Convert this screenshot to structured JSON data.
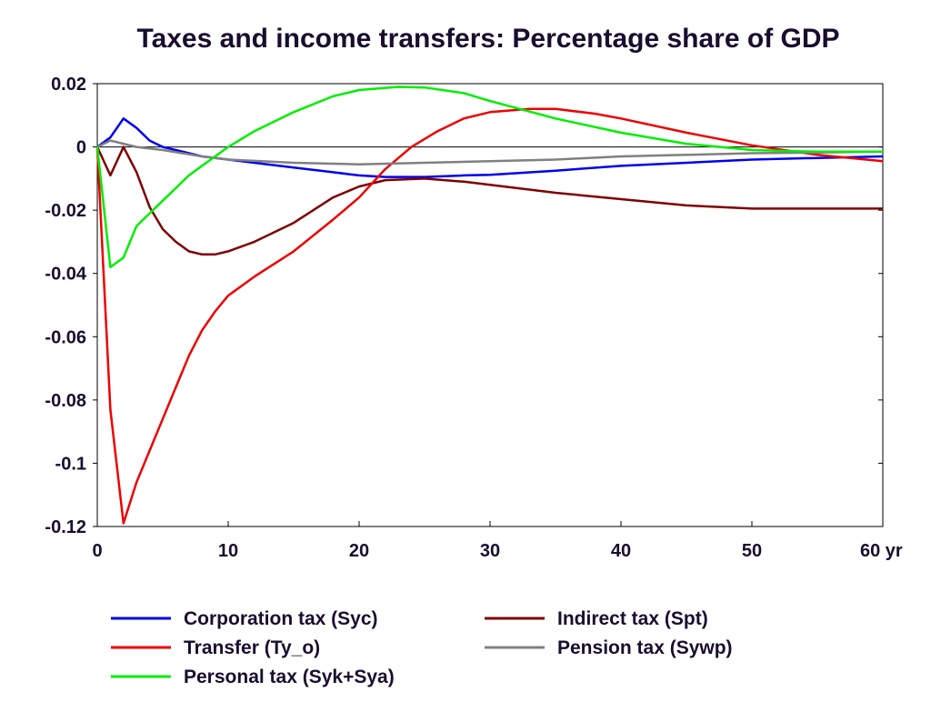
{
  "chart_data": {
    "type": "line",
    "title": "Taxes and income transfers: Percentage share of GDP",
    "xlabel": "",
    "ylabel": "",
    "xlim": [
      0,
      60
    ],
    "ylim": [
      -0.12,
      0.02
    ],
    "x_ticks": [
      0,
      10,
      20,
      30,
      40,
      50,
      60
    ],
    "x_tick_labels": [
      "0",
      "10",
      "20",
      "30",
      "40",
      "50",
      "60 yr"
    ],
    "y_ticks": [
      0.02,
      0,
      -0.02,
      -0.04,
      -0.06,
      -0.08,
      -0.1,
      -0.12
    ],
    "y_tick_labels": [
      "0.02",
      "0",
      "-0.02",
      "-0.04",
      "-0.06",
      "-0.08",
      "-0.1",
      "-0.12"
    ],
    "zero_line": true,
    "grid": false,
    "legend_position": "bottom",
    "series": [
      {
        "name": "Corporation tax (Syc)",
        "color": "#0000ee",
        "points": [
          [
            0,
            0
          ],
          [
            1,
            0.003
          ],
          [
            2,
            0.009
          ],
          [
            3,
            0.006
          ],
          [
            4,
            0.002
          ],
          [
            5,
            0
          ],
          [
            6,
            -0.001
          ],
          [
            8,
            -0.003
          ],
          [
            10,
            -0.004
          ],
          [
            12,
            -0.005
          ],
          [
            15,
            -0.0065
          ],
          [
            18,
            -0.008
          ],
          [
            20,
            -0.009
          ],
          [
            22,
            -0.0095
          ],
          [
            25,
            -0.0095
          ],
          [
            28,
            -0.009
          ],
          [
            30,
            -0.0088
          ],
          [
            35,
            -0.0075
          ],
          [
            40,
            -0.006
          ],
          [
            45,
            -0.005
          ],
          [
            50,
            -0.004
          ],
          [
            55,
            -0.0035
          ],
          [
            60,
            -0.003
          ]
        ]
      },
      {
        "name": "Indirect tax (Spt)",
        "color": "#800000",
        "points": [
          [
            0,
            0
          ],
          [
            1,
            -0.009
          ],
          [
            2,
            0
          ],
          [
            3,
            -0.008
          ],
          [
            4,
            -0.019
          ],
          [
            5,
            -0.026
          ],
          [
            6,
            -0.03
          ],
          [
            7,
            -0.033
          ],
          [
            8,
            -0.034
          ],
          [
            9,
            -0.034
          ],
          [
            10,
            -0.033
          ],
          [
            12,
            -0.03
          ],
          [
            15,
            -0.024
          ],
          [
            18,
            -0.016
          ],
          [
            20,
            -0.0125
          ],
          [
            22,
            -0.0105
          ],
          [
            25,
            -0.01
          ],
          [
            28,
            -0.011
          ],
          [
            30,
            -0.012
          ],
          [
            35,
            -0.0145
          ],
          [
            40,
            -0.0165
          ],
          [
            45,
            -0.0185
          ],
          [
            50,
            -0.0195
          ],
          [
            55,
            -0.0195
          ],
          [
            60,
            -0.0195
          ]
        ]
      },
      {
        "name": "Transfer (Ty_o)",
        "color": "#ee0000",
        "points": [
          [
            0,
            0
          ],
          [
            1,
            -0.083
          ],
          [
            2,
            -0.119
          ],
          [
            3,
            -0.106
          ],
          [
            4,
            -0.096
          ],
          [
            5,
            -0.086
          ],
          [
            6,
            -0.076
          ],
          [
            7,
            -0.066
          ],
          [
            8,
            -0.058
          ],
          [
            9,
            -0.052
          ],
          [
            10,
            -0.047
          ],
          [
            12,
            -0.041
          ],
          [
            15,
            -0.033
          ],
          [
            18,
            -0.023
          ],
          [
            20,
            -0.016
          ],
          [
            22,
            -0.007
          ],
          [
            24,
            0
          ],
          [
            26,
            0.005
          ],
          [
            28,
            0.009
          ],
          [
            30,
            0.011
          ],
          [
            33,
            0.012
          ],
          [
            35,
            0.012
          ],
          [
            38,
            0.0105
          ],
          [
            40,
            0.009
          ],
          [
            45,
            0.0045
          ],
          [
            50,
            0.0005
          ],
          [
            55,
            -0.0025
          ],
          [
            60,
            -0.0045
          ]
        ]
      },
      {
        "name": "Pension tax (Sywp)",
        "color": "#808080",
        "points": [
          [
            0,
            0
          ],
          [
            1,
            0.002
          ],
          [
            2,
            0.001
          ],
          [
            3,
            0
          ],
          [
            5,
            -0.001
          ],
          [
            8,
            -0.003
          ],
          [
            10,
            -0.004
          ],
          [
            15,
            -0.005
          ],
          [
            20,
            -0.0055
          ],
          [
            25,
            -0.005
          ],
          [
            30,
            -0.0045
          ],
          [
            35,
            -0.004
          ],
          [
            40,
            -0.003
          ],
          [
            45,
            -0.0025
          ],
          [
            50,
            -0.002
          ],
          [
            55,
            -0.0018
          ],
          [
            60,
            -0.0015
          ]
        ]
      },
      {
        "name": "Personal tax (Syk+Sya)",
        "color": "#00ee00",
        "points": [
          [
            0,
            0
          ],
          [
            1,
            -0.038
          ],
          [
            2,
            -0.035
          ],
          [
            3,
            -0.025
          ],
          [
            4,
            -0.021
          ],
          [
            5,
            -0.017
          ],
          [
            6,
            -0.013
          ],
          [
            7,
            -0.009
          ],
          [
            8,
            -0.006
          ],
          [
            10,
            0
          ],
          [
            12,
            0.005
          ],
          [
            15,
            0.011
          ],
          [
            18,
            0.016
          ],
          [
            20,
            0.018
          ],
          [
            23,
            0.019
          ],
          [
            25,
            0.0188
          ],
          [
            28,
            0.017
          ],
          [
            30,
            0.0145
          ],
          [
            35,
            0.009
          ],
          [
            40,
            0.0045
          ],
          [
            45,
            0.001
          ],
          [
            50,
            -0.001
          ],
          [
            55,
            -0.0015
          ],
          [
            60,
            -0.0015
          ]
        ]
      }
    ]
  }
}
